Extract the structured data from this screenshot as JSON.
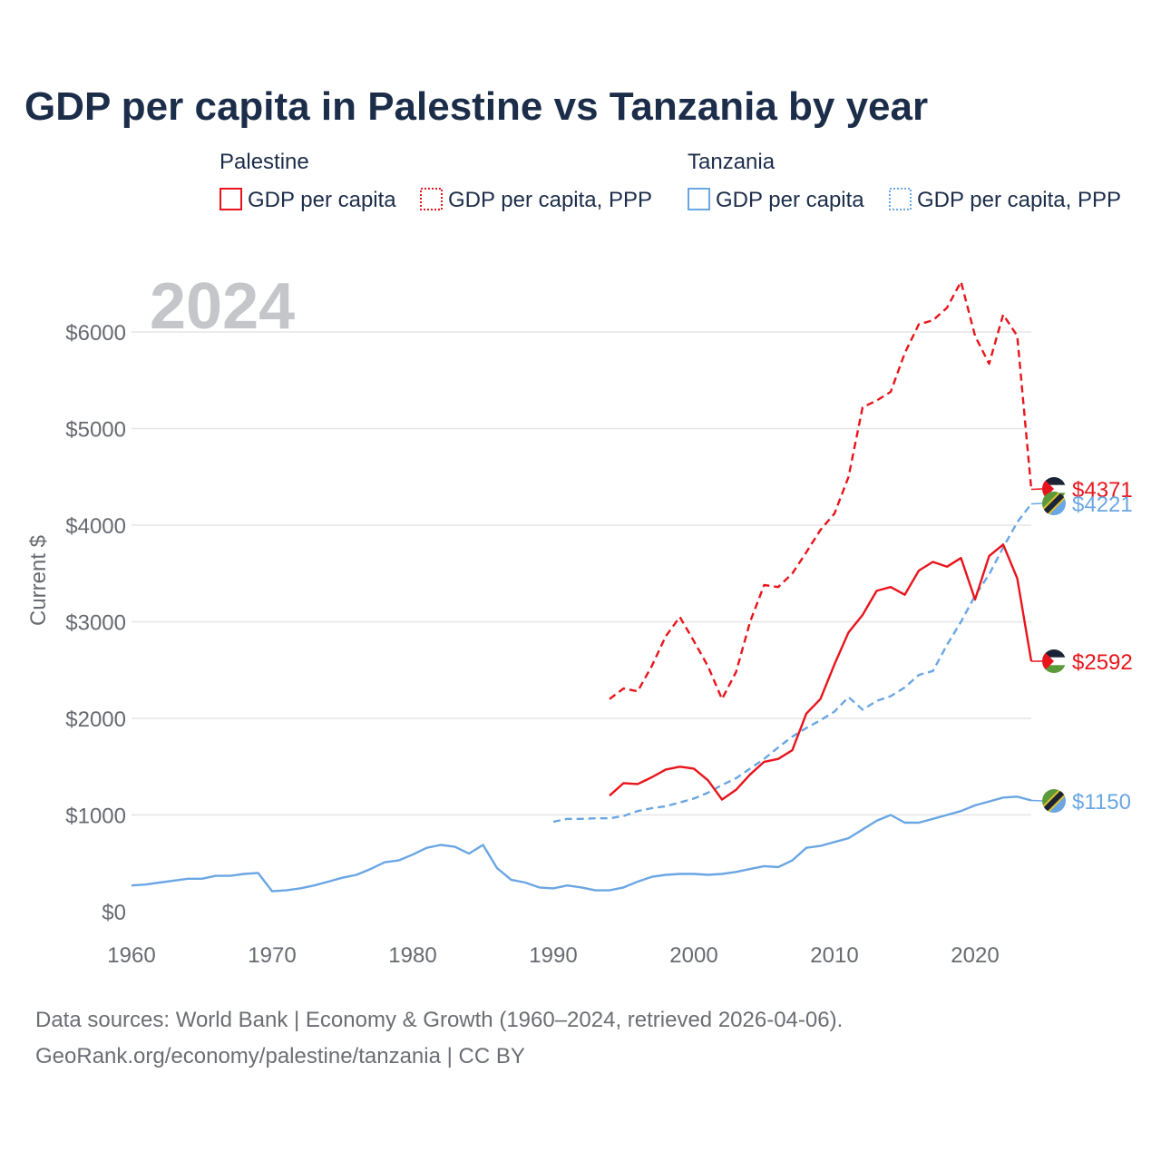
{
  "chart_data": {
    "type": "line",
    "title": "GDP per capita in Palestine vs Tanzania by year",
    "year_label": "2024",
    "ylabel": "Current $",
    "xlim": [
      1960,
      2024
    ],
    "ylim": [
      0,
      6500
    ],
    "x_ticks": [
      1960,
      1970,
      1980,
      1990,
      2000,
      2010,
      2020
    ],
    "x_tick_labels": [
      "1960",
      "1970",
      "1980",
      "1990",
      "2000",
      "2010",
      "2020"
    ],
    "y_ticks": [
      0,
      1000,
      2000,
      3000,
      4000,
      5000,
      6000
    ],
    "y_tick_labels": [
      "$0",
      "$1000",
      "$2000",
      "$3000",
      "$4000",
      "$5000",
      "$6000"
    ],
    "legend": [
      {
        "group": "Palestine",
        "items": [
          "GDP per capita",
          "GDP per capita, PPP"
        ]
      },
      {
        "group": "Tanzania",
        "items": [
          "GDP per capita",
          "GDP per capita, PPP"
        ]
      }
    ],
    "series": [
      {
        "name": "Palestine GDP per capita, PPP",
        "country": "Palestine",
        "color": "#e8141b",
        "dashed": true,
        "x": [
          1994,
          1995,
          1996,
          1997,
          1998,
          1999,
          2000,
          2001,
          2002,
          2003,
          2004,
          2005,
          2006,
          2007,
          2008,
          2009,
          2010,
          2011,
          2012,
          2013,
          2014,
          2015,
          2016,
          2017,
          2018,
          2019,
          2020,
          2021,
          2022,
          2023,
          2024
        ],
        "values": [
          2200,
          2310,
          2280,
          2540,
          2850,
          3050,
          2800,
          2540,
          2200,
          2480,
          3000,
          3380,
          3360,
          3500,
          3720,
          3950,
          4120,
          4500,
          5220,
          5290,
          5380,
          5780,
          6080,
          6120,
          6250,
          6520,
          5960,
          5670,
          6180,
          5960,
          4371
        ],
        "end_label": "$4371"
      },
      {
        "name": "Tanzania GDP per capita, PPP",
        "country": "Tanzania",
        "color": "#6aa6e3",
        "dashed": true,
        "x": [
          1990,
          1991,
          1992,
          1993,
          1994,
          1995,
          1996,
          1997,
          1998,
          1999,
          2000,
          2001,
          2002,
          2003,
          2004,
          2005,
          2006,
          2007,
          2008,
          2009,
          2010,
          2011,
          2012,
          2013,
          2014,
          2015,
          2016,
          2017,
          2018,
          2019,
          2020,
          2021,
          2022,
          2023,
          2024
        ],
        "values": [
          930,
          960,
          960,
          965,
          965,
          990,
          1040,
          1070,
          1090,
          1130,
          1170,
          1230,
          1310,
          1380,
          1480,
          1580,
          1700,
          1810,
          1900,
          1980,
          2070,
          2220,
          2090,
          2180,
          2230,
          2320,
          2450,
          2490,
          2760,
          3000,
          3270,
          3490,
          3770,
          4030,
          4221
        ],
        "end_label": "$4221"
      },
      {
        "name": "Palestine GDP per capita",
        "country": "Palestine",
        "color": "#e8141b",
        "dashed": false,
        "x": [
          1994,
          1995,
          1996,
          1997,
          1998,
          1999,
          2000,
          2001,
          2002,
          2003,
          2004,
          2005,
          2006,
          2007,
          2008,
          2009,
          2010,
          2011,
          2012,
          2013,
          2014,
          2015,
          2016,
          2017,
          2018,
          2019,
          2020,
          2021,
          2022,
          2023,
          2024
        ],
        "values": [
          1200,
          1330,
          1320,
          1390,
          1470,
          1500,
          1480,
          1360,
          1160,
          1260,
          1420,
          1550,
          1580,
          1670,
          2050,
          2200,
          2560,
          2890,
          3070,
          3320,
          3360,
          3280,
          3530,
          3620,
          3570,
          3660,
          3230,
          3680,
          3800,
          3450,
          2592
        ],
        "end_label": "$2592"
      },
      {
        "name": "Tanzania GDP per capita",
        "country": "Tanzania",
        "color": "#6aa6e3",
        "dashed": false,
        "x": [
          1960,
          1961,
          1962,
          1963,
          1964,
          1965,
          1966,
          1967,
          1968,
          1969,
          1970,
          1971,
          1972,
          1973,
          1974,
          1975,
          1976,
          1977,
          1978,
          1979,
          1980,
          1981,
          1982,
          1983,
          1984,
          1985,
          1986,
          1987,
          1988,
          1989,
          1990,
          1991,
          1992,
          1993,
          1994,
          1995,
          1996,
          1997,
          1998,
          1999,
          2000,
          2001,
          2002,
          2003,
          2004,
          2005,
          2006,
          2007,
          2008,
          2009,
          2010,
          2011,
          2012,
          2013,
          2014,
          2015,
          2016,
          2017,
          2018,
          2019,
          2020,
          2021,
          2022,
          2023,
          2024
        ],
        "values": [
          270,
          280,
          300,
          320,
          340,
          340,
          370,
          370,
          390,
          400,
          210,
          220,
          240,
          270,
          310,
          350,
          380,
          440,
          510,
          530,
          590,
          660,
          690,
          670,
          600,
          690,
          450,
          330,
          300,
          250,
          240,
          270,
          250,
          220,
          220,
          250,
          310,
          360,
          380,
          390,
          390,
          380,
          390,
          410,
          440,
          470,
          460,
          530,
          660,
          680,
          720,
          760,
          850,
          940,
          1000,
          920,
          920,
          960,
          1000,
          1040,
          1100,
          1140,
          1180,
          1190,
          1150
        ],
        "end_label": "$1150"
      }
    ],
    "end_markers": [
      {
        "country": "Palestine",
        "value": 4371,
        "label": "$4371",
        "color": "#e8141b",
        "icon": "palestine-flag-icon"
      },
      {
        "country": "Tanzania",
        "value": 4221,
        "label": "$4221",
        "color": "#6aa6e3",
        "icon": "tanzania-flag-icon"
      },
      {
        "country": "Palestine",
        "value": 2592,
        "label": "$2592",
        "color": "#e8141b",
        "icon": "palestine-flag-icon"
      },
      {
        "country": "Tanzania",
        "value": 1150,
        "label": "$1150",
        "color": "#6aa6e3",
        "icon": "tanzania-flag-icon"
      }
    ]
  },
  "source_line1": "Data sources: World Bank | Economy & Growth (1960–2024, retrieved 2026-04-06).",
  "source_line2": "GeoRank.org/economy/palestine/tanzania | CC BY"
}
